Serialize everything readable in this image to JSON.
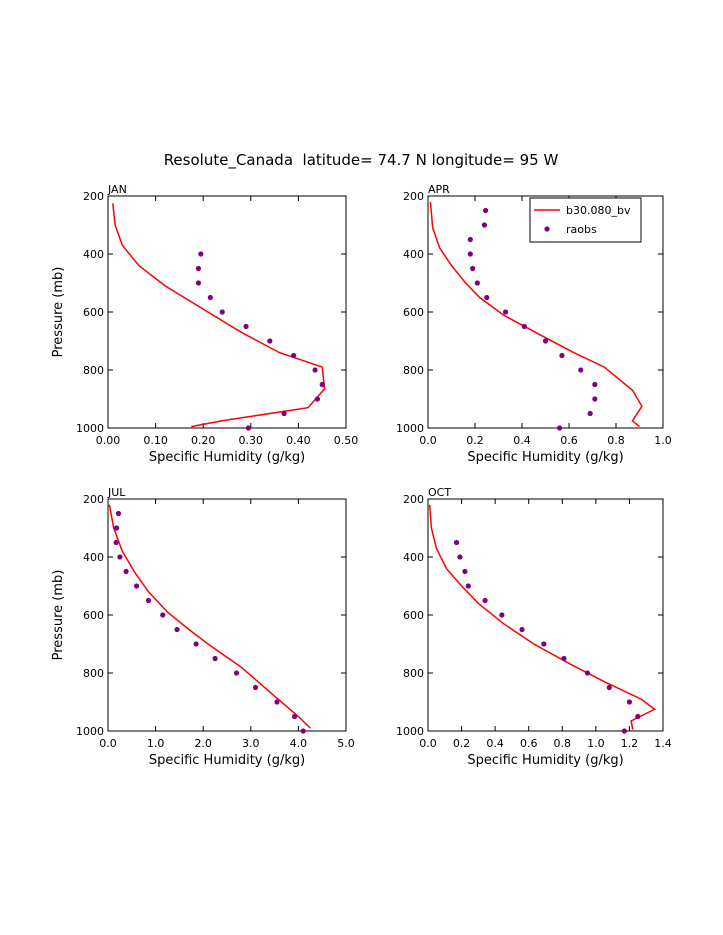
{
  "figure": {
    "title": "Resolute_Canada  latitude= 74.7 N longitude= 95 W"
  },
  "colors": {
    "model": "#ff0000",
    "obs": "#800080",
    "axis": "#000000"
  },
  "chart_data": [
    {
      "type": "line",
      "panel": "JAN",
      "xlabel": "Specific Humidity (g/kg)",
      "ylabel": "Pressure (mb)",
      "xlim": [
        0,
        0.5
      ],
      "ylim": [
        1000,
        200
      ],
      "xticks": [
        "0.00",
        "0.10",
        "0.20",
        "0.30",
        "0.40",
        "0.50"
      ],
      "xtick_values": [
        0,
        0.1,
        0.2,
        0.3,
        0.4,
        0.5
      ],
      "yticks": [
        "200",
        "400",
        "600",
        "800",
        "1000"
      ],
      "ytick_values": [
        200,
        400,
        600,
        800,
        1000
      ],
      "legend": null,
      "series": [
        {
          "name": "b30.080_bv",
          "style": "line",
          "points": [
            [
              0.01,
              225
            ],
            [
              0.015,
              300
            ],
            [
              0.03,
              370
            ],
            [
              0.065,
              440
            ],
            [
              0.12,
              510
            ],
            [
              0.2,
              590
            ],
            [
              0.28,
              670
            ],
            [
              0.36,
              740
            ],
            [
              0.45,
              790
            ],
            [
              0.455,
              865
            ],
            [
              0.42,
              930
            ],
            [
              0.24,
              975
            ],
            [
              0.175,
              995
            ]
          ]
        },
        {
          "name": "raobs",
          "style": "markers",
          "points": [
            [
              0.195,
              400
            ],
            [
              0.19,
              450
            ],
            [
              0.19,
              500
            ],
            [
              0.215,
              550
            ],
            [
              0.24,
              600
            ],
            [
              0.29,
              650
            ],
            [
              0.34,
              700
            ],
            [
              0.39,
              750
            ],
            [
              0.435,
              800
            ],
            [
              0.45,
              850
            ],
            [
              0.44,
              900
            ],
            [
              0.37,
              950
            ],
            [
              0.295,
              1000
            ]
          ]
        }
      ]
    },
    {
      "type": "line",
      "panel": "APR",
      "xlabel": "Specific Humidity (g/kg)",
      "ylabel": "",
      "xlim": [
        0,
        1.0
      ],
      "ylim": [
        1000,
        200
      ],
      "xticks": [
        "0.0",
        "0.2",
        "0.4",
        "0.6",
        "0.8",
        "1.0"
      ],
      "xtick_values": [
        0,
        0.2,
        0.4,
        0.6,
        0.8,
        1.0
      ],
      "yticks": [
        "200",
        "400",
        "600",
        "800",
        "1000"
      ],
      "ytick_values": [
        200,
        400,
        600,
        800,
        1000
      ],
      "legend": {
        "position": "top-right",
        "entries": [
          "b30.080_bv",
          "raobs"
        ]
      },
      "series": [
        {
          "name": "b30.080_bv",
          "style": "line",
          "points": [
            [
              0.01,
              220
            ],
            [
              0.02,
              310
            ],
            [
              0.05,
              380
            ],
            [
              0.1,
              440
            ],
            [
              0.16,
              500
            ],
            [
              0.22,
              550
            ],
            [
              0.32,
              610
            ],
            [
              0.48,
              680
            ],
            [
              0.62,
              740
            ],
            [
              0.75,
              790
            ],
            [
              0.87,
              870
            ],
            [
              0.91,
              925
            ],
            [
              0.87,
              975
            ],
            [
              0.9,
              995
            ]
          ]
        },
        {
          "name": "raobs",
          "style": "markers",
          "points": [
            [
              0.245,
              250
            ],
            [
              0.24,
              300
            ],
            [
              0.18,
              350
            ],
            [
              0.18,
              400
            ],
            [
              0.19,
              450
            ],
            [
              0.21,
              500
            ],
            [
              0.25,
              550
            ],
            [
              0.33,
              600
            ],
            [
              0.41,
              650
            ],
            [
              0.5,
              700
            ],
            [
              0.57,
              750
            ],
            [
              0.65,
              800
            ],
            [
              0.71,
              850
            ],
            [
              0.71,
              900
            ],
            [
              0.69,
              950
            ],
            [
              0.56,
              1000
            ]
          ]
        }
      ]
    },
    {
      "type": "line",
      "panel": "JUL",
      "xlabel": "Specific Humidity (g/kg)",
      "ylabel": "Pressure (mb)",
      "xlim": [
        0,
        5.0
      ],
      "ylim": [
        1000,
        200
      ],
      "xticks": [
        "0.0",
        "1.0",
        "2.0",
        "3.0",
        "4.0",
        "5.0"
      ],
      "xtick_values": [
        0,
        1,
        2,
        3,
        4,
        5
      ],
      "yticks": [
        "200",
        "400",
        "600",
        "800",
        "1000"
      ],
      "ytick_values": [
        200,
        400,
        600,
        800,
        1000
      ],
      "legend": null,
      "series": [
        {
          "name": "b30.080_bv",
          "style": "line",
          "points": [
            [
              0.03,
              220
            ],
            [
              0.12,
              300
            ],
            [
              0.3,
              380
            ],
            [
              0.55,
              450
            ],
            [
              0.85,
              520
            ],
            [
              1.25,
              590
            ],
            [
              1.7,
              650
            ],
            [
              2.1,
              700
            ],
            [
              2.8,
              780
            ],
            [
              3.5,
              880
            ],
            [
              4.0,
              950
            ],
            [
              4.25,
              990
            ]
          ]
        },
        {
          "name": "raobs",
          "style": "markers",
          "points": [
            [
              0.22,
              250
            ],
            [
              0.18,
              300
            ],
            [
              0.17,
              350
            ],
            [
              0.25,
              400
            ],
            [
              0.38,
              450
            ],
            [
              0.6,
              500
            ],
            [
              0.85,
              550
            ],
            [
              1.15,
              600
            ],
            [
              1.45,
              650
            ],
            [
              1.85,
              700
            ],
            [
              2.25,
              750
            ],
            [
              2.7,
              800
            ],
            [
              3.1,
              850
            ],
            [
              3.55,
              900
            ],
            [
              3.92,
              950
            ],
            [
              4.1,
              1000
            ]
          ]
        }
      ]
    },
    {
      "type": "line",
      "panel": "OCT",
      "xlabel": "Specific Humidity (g/kg)",
      "ylabel": "",
      "xlim": [
        0,
        1.4
      ],
      "ylim": [
        1000,
        200
      ],
      "xticks": [
        "0.0",
        "0.2",
        "0.4",
        "0.6",
        "0.8",
        "1.0",
        "1.2",
        "1.4"
      ],
      "xtick_values": [
        0,
        0.2,
        0.4,
        0.6,
        0.8,
        1.0,
        1.2,
        1.4
      ],
      "yticks": [
        "200",
        "400",
        "600",
        "800",
        "1000"
      ],
      "ytick_values": [
        200,
        400,
        600,
        800,
        1000
      ],
      "legend": null,
      "series": [
        {
          "name": "b30.080_bv",
          "style": "line",
          "points": [
            [
              0.01,
              220
            ],
            [
              0.02,
              300
            ],
            [
              0.05,
              370
            ],
            [
              0.11,
              440
            ],
            [
              0.2,
              500
            ],
            [
              0.3,
              560
            ],
            [
              0.45,
              630
            ],
            [
              0.63,
              700
            ],
            [
              0.85,
              770
            ],
            [
              1.05,
              830
            ],
            [
              1.27,
              890
            ],
            [
              1.35,
              925
            ],
            [
              1.21,
              965
            ],
            [
              1.22,
              995
            ]
          ]
        },
        {
          "name": "raobs",
          "style": "markers",
          "points": [
            [
              0.17,
              350
            ],
            [
              0.19,
              400
            ],
            [
              0.22,
              450
            ],
            [
              0.24,
              500
            ],
            [
              0.34,
              550
            ],
            [
              0.44,
              600
            ],
            [
              0.56,
              650
            ],
            [
              0.69,
              700
            ],
            [
              0.81,
              750
            ],
            [
              0.95,
              800
            ],
            [
              1.08,
              850
            ],
            [
              1.2,
              900
            ],
            [
              1.25,
              950
            ],
            [
              1.17,
              1000
            ]
          ]
        }
      ]
    }
  ]
}
